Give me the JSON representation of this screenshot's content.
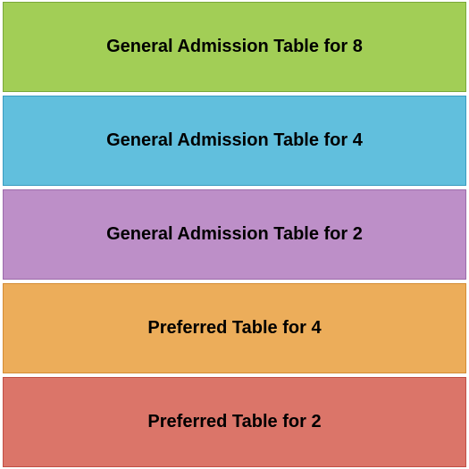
{
  "chart": {
    "type": "infographic",
    "background_color": "#ffffff",
    "label_fontsize": 20,
    "label_fontweight": "bold",
    "label_color": "#000000",
    "sections": [
      {
        "label": "General Admission Table for 8",
        "fill_color": "#a2ce56",
        "border_color": "#7aa83a"
      },
      {
        "label": "General Admission Table for 4",
        "fill_color": "#61bfdd",
        "border_color": "#3a9cc0"
      },
      {
        "label": "General Admission Table for 2",
        "fill_color": "#bd8fc8",
        "border_color": "#9c6aaa"
      },
      {
        "label": "Preferred Table for 4",
        "fill_color": "#ecad5a",
        "border_color": "#d48c35"
      },
      {
        "label": "Preferred Table for 2",
        "fill_color": "#db7569",
        "border_color": "#c04f45"
      }
    ]
  }
}
